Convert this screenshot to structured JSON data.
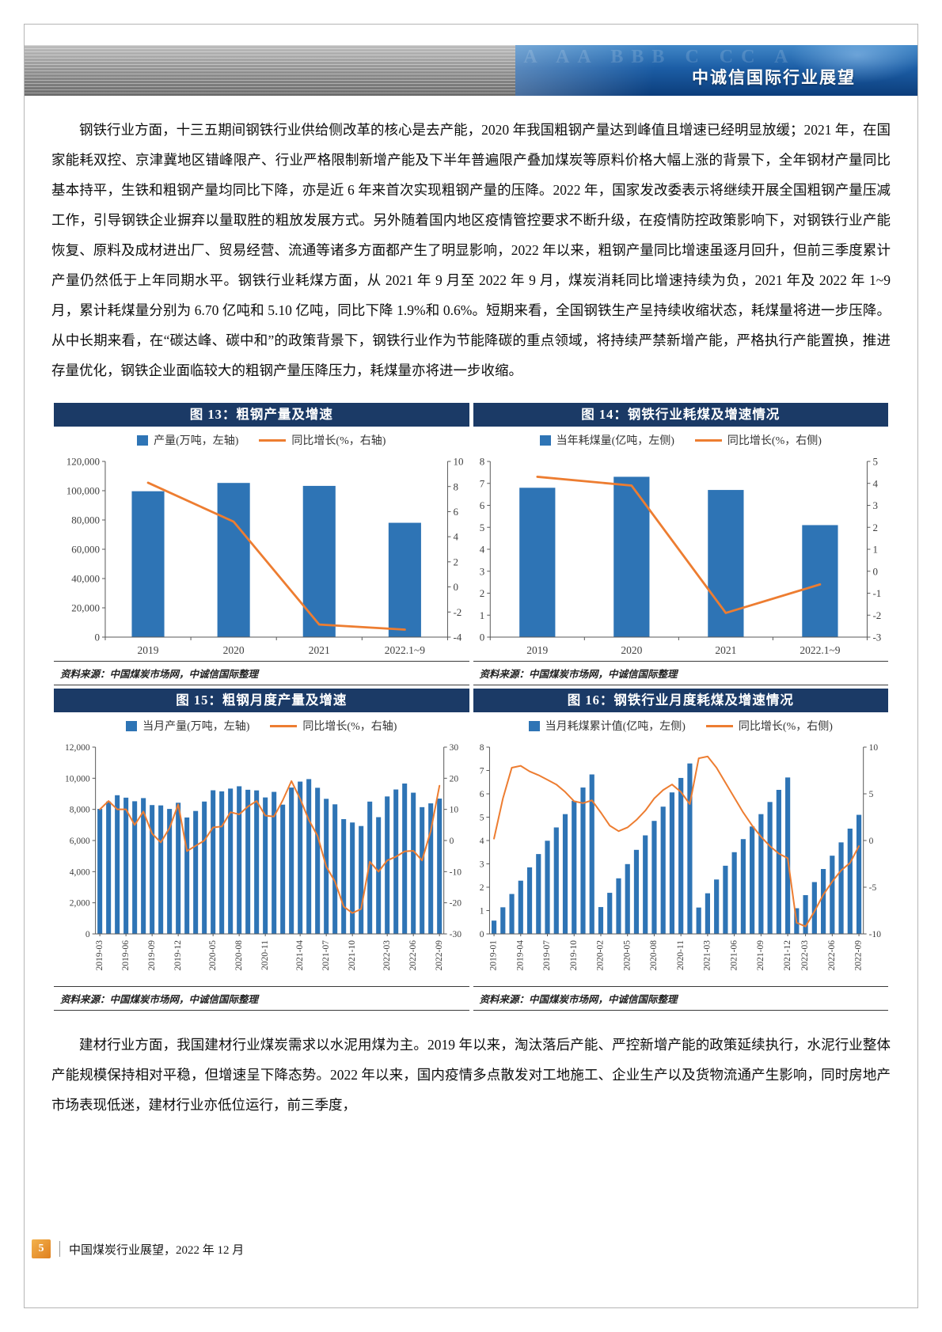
{
  "colors": {
    "navy": "#1B3A66",
    "bar_blue": "#2E74B5",
    "line_orange": "#ED7D31",
    "badge_orange": "#E9983C"
  },
  "header": {
    "title": "中诚信国际行业展望",
    "watermark": "A AA BBB C CC A"
  },
  "paragraphs": {
    "steel": "钢铁行业方面，十三五期间钢铁行业供给侧改革的核心是去产能，2020 年我国粗钢产量达到峰值且增速已经明显放缓；2021 年，在国家能耗双控、京津冀地区错峰限产、行业严格限制新增产能及下半年普遍限产叠加煤炭等原料价格大幅上涨的背景下，全年钢材产量同比基本持平，生铁和粗钢产量均同比下降，亦是近 6 年来首次实现粗钢产量的压降。2022 年，国家发改委表示将继续开展全国粗钢产量压减工作，引导钢铁企业摒弃以量取胜的粗放发展方式。另外随着国内地区疫情管控要求不断升级，在疫情防控政策影响下，对钢铁行业产能恢复、原料及成材进出厂、贸易经营、流通等诸多方面都产生了明显影响，2022 年以来，粗钢产量同比增速虽逐月回升，但前三季度累计产量仍然低于上年同期水平。钢铁行业耗煤方面，从 2021 年 9 月至 2022 年 9 月，煤炭消耗同比增速持续为负，2021 年及 2022 年 1~9 月，累计耗煤量分别为 6.70 亿吨和 5.10 亿吨，同比下降 1.9%和 0.6%。短期来看，全国钢铁生产呈持续收缩状态，耗煤量将进一步压降。从中长期来看，在“碳达峰、碳中和”的政策背景下，钢铁行业作为节能降碳的重点领域，将持续严禁新增产能，严格执行产能置换，推进存量优化，钢铁企业面临较大的粗钢产量压降压力，耗煤量亦将进一步收缩。",
    "materials": "建材行业方面，我国建材行业煤炭需求以水泥用煤为主。2019 年以来，淘汰落后产能、严控新增产能的政策延续执行，水泥行业整体产能规模保持相对平稳，但增速呈下降态势。2022 年以来，国内疫情多点散发对工地施工、企业生产以及货物流通产生影响，同时房地产市场表现低迷，建材行业亦低位运行，前三季度，"
  },
  "charts": [
    {
      "title": "图 13：粗钢产量及增速",
      "source": "资料来源：中国煤炭市场网，中诚信国际整理",
      "chart_data": {
        "type": "bar",
        "categories": [
          "2019",
          "2020",
          "2021",
          "2022.1~9"
        ],
        "series": [
          {
            "name": "产量(万吨，左轴)",
            "type": "bar",
            "axis": "left",
            "values": [
              99634,
              105300,
              103279,
              78083
            ]
          },
          {
            "name": "同比增长(%，右轴)",
            "type": "line",
            "axis": "right",
            "values": [
              8.3,
              5.2,
              -3.0,
              -3.4
            ]
          }
        ],
        "left_axis": {
          "min": 0,
          "max": 120000,
          "step": 20000,
          "format": "thousands"
        },
        "right_axis": {
          "min": -4,
          "max": 10,
          "step": 2
        },
        "rotate_x": false,
        "bar_color": "#2E74B5",
        "line_color": "#ED7D31"
      }
    },
    {
      "title": "图 14：钢铁行业耗煤及增速情况",
      "source": "资料来源：中国煤炭市场网，中诚信国际整理",
      "chart_data": {
        "type": "bar",
        "categories": [
          "2019",
          "2020",
          "2021",
          "2022.1~9"
        ],
        "series": [
          {
            "name": "当年耗煤量(亿吨，左侧)",
            "type": "bar",
            "axis": "left",
            "values": [
              6.8,
              7.3,
              6.7,
              5.1
            ]
          },
          {
            "name": "同比增长(%，右侧)",
            "type": "line",
            "axis": "right",
            "values": [
              4.3,
              3.9,
              -1.9,
              -0.6
            ]
          }
        ],
        "left_axis": {
          "min": 0,
          "max": 8,
          "step": 1,
          "format": "plain"
        },
        "right_axis": {
          "min": -3,
          "max": 5,
          "step": 1
        },
        "rotate_x": false,
        "bar_color": "#2E74B5",
        "line_color": "#ED7D31"
      }
    },
    {
      "title": "图 15：粗钢月度产量及增速",
      "source": "资料来源：中国煤炭市场网，中诚信国际整理",
      "chart_data": {
        "type": "bar",
        "categories": [
          "2019-03",
          "2019-04",
          "2019-05",
          "2019-06",
          "2019-07",
          "2019-08",
          "2019-09",
          "2019-10",
          "2019-11",
          "2019-12",
          "2020-02",
          "2020-03",
          "2020-04",
          "2020-05",
          "2020-06",
          "2020-07",
          "2020-08",
          "2020-09",
          "2020-10",
          "2020-11",
          "2020-12",
          "2021-02",
          "2021-03",
          "2021-04",
          "2021-05",
          "2021-06",
          "2021-07",
          "2021-08",
          "2021-09",
          "2021-10",
          "2021-11",
          "2021-12",
          "2022-02",
          "2022-03",
          "2022-04",
          "2022-05",
          "2022-06",
          "2022-07",
          "2022-08",
          "2022-09"
        ],
        "series": [
          {
            "name": "当月产量(万吨，左轴)",
            "type": "bar",
            "axis": "left",
            "values": [
              8033,
              8503,
              8909,
              8753,
              8522,
              8725,
              8277,
              8255,
              8029,
              8427,
              7480,
              7898,
              8503,
              9227,
              9158,
              9336,
              9485,
              9261,
              9220,
              8766,
              9125,
              8305,
              9402,
              9785,
              9945,
              9388,
              8679,
              8324,
              7375,
              7158,
              6931,
              8500,
              7500,
              8830,
              9278,
              9661,
              9073,
              8143,
              8387,
              8695
            ]
          },
          {
            "name": "同比增长(%，右轴)",
            "type": "line",
            "axis": "right",
            "values": [
              10.0,
              12.7,
              10.0,
              10.0,
              5.0,
              9.3,
              2.2,
              -0.6,
              4.0,
              11.6,
              -3.4,
              -1.7,
              0.0,
              4.2,
              4.5,
              9.1,
              8.4,
              10.9,
              12.7,
              8.0,
              7.7,
              12.9,
              19.1,
              13.4,
              6.6,
              1.5,
              -8.4,
              -13.2,
              -21.2,
              -23.3,
              -22.0,
              -6.8,
              -10.0,
              -6.4,
              -5.2,
              -3.5,
              -3.3,
              -6.4,
              3.1,
              17.6
            ]
          }
        ],
        "left_axis": {
          "min": 0,
          "max": 12000,
          "step": 2000,
          "format": "thousands"
        },
        "right_axis": {
          "min": -30,
          "max": 30,
          "step": 10
        },
        "rotate_x": true,
        "tick_labels": [
          "2019-03",
          "2019-06",
          "2019-09",
          "2019-12",
          "2020-05",
          "2020-08",
          "2020-11",
          "2021-04",
          "2021-07",
          "2021-10",
          "2022-03",
          "2022-06",
          "2022-09"
        ],
        "bar_color": "#2E74B5",
        "line_color": "#ED7D31"
      }
    },
    {
      "title": "图 16：钢铁行业月度耗煤及增速情况",
      "source": "资料来源：中国煤炭市场网，中诚信国际整理",
      "chart_data": {
        "type": "bar",
        "categories": [
          "2019-01",
          "2019-02",
          "2019-03",
          "2019-04",
          "2019-05",
          "2019-06",
          "2019-07",
          "2019-08",
          "2019-09",
          "2019-10",
          "2019-11",
          "2019-12",
          "2020-02",
          "2020-03",
          "2020-04",
          "2020-05",
          "2020-06",
          "2020-07",
          "2020-08",
          "2020-09",
          "2020-10",
          "2020-11",
          "2020-12",
          "2021-02",
          "2021-03",
          "2021-04",
          "2021-05",
          "2021-06",
          "2021-07",
          "2021-08",
          "2021-09",
          "2021-10",
          "2021-11",
          "2021-12",
          "2022-02",
          "2022-03",
          "2022-04",
          "2022-05",
          "2022-06",
          "2022-07",
          "2022-08",
          "2022-09"
        ],
        "series": [
          {
            "name": "当月耗煤累计值(亿吨，左侧)",
            "type": "bar",
            "axis": "left",
            "values": [
              0.57,
              1.14,
              1.71,
              2.28,
              2.85,
              3.42,
              3.99,
              4.56,
              5.13,
              5.7,
              6.27,
              6.83,
              1.15,
              1.76,
              2.38,
              2.99,
              3.6,
              4.22,
              4.84,
              5.45,
              6.06,
              6.68,
              7.3,
              1.13,
              1.74,
              2.33,
              2.92,
              3.5,
              4.06,
              4.6,
              5.13,
              5.65,
              6.17,
              6.7,
              1.1,
              1.66,
              2.22,
              2.78,
              3.35,
              3.92,
              4.51,
              5.1
            ]
          },
          {
            "name": "同比增长(%，右侧)",
            "type": "line",
            "axis": "right",
            "values": [
              0.2,
              4.5,
              7.8,
              8.0,
              7.4,
              7.0,
              6.5,
              6.0,
              5.2,
              4.2,
              4.0,
              4.3,
              3.0,
              1.6,
              1.0,
              1.4,
              2.2,
              3.2,
              4.5,
              5.4,
              6.0,
              5.2,
              3.9,
              8.8,
              9.0,
              7.8,
              6.2,
              4.6,
              3.0,
              1.6,
              0.4,
              -0.6,
              -1.4,
              -1.9,
              -8.8,
              -9.2,
              -7.6,
              -5.8,
              -4.4,
              -3.2,
              -2.4,
              -0.6
            ]
          }
        ],
        "left_axis": {
          "min": 0,
          "max": 8,
          "step": 1,
          "format": "plain"
        },
        "right_axis": {
          "min": -10,
          "max": 10,
          "step": 5
        },
        "rotate_x": true,
        "tick_labels": [
          "2019-01",
          "2019-04",
          "2019-07",
          "2019-10",
          "2020-02",
          "2020-05",
          "2020-08",
          "2020-11",
          "2021-03",
          "2021-06",
          "2021-09",
          "2021-12",
          "2022-03",
          "2022-06",
          "2022-09"
        ],
        "bar_color": "#2E74B5",
        "line_color": "#ED7D31"
      }
    }
  ],
  "footer": {
    "page_number": "5",
    "text": "中国煤炭行业展望，2022 年 12 月"
  }
}
